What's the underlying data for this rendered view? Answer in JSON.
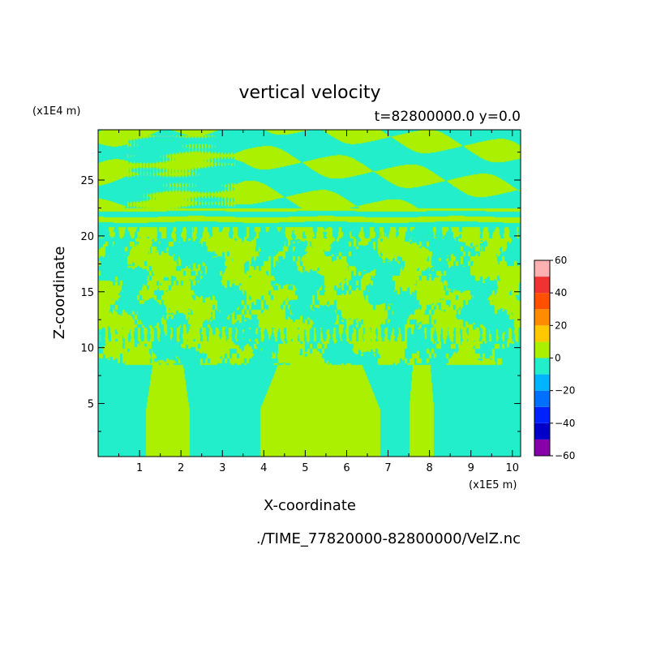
{
  "chart_data": {
    "type": "heatmap",
    "title": "vertical velocity",
    "subtitle": "t=82800000.0 y=0.0",
    "xlabel": "X-coordinate",
    "ylabel": "Z-coordinate",
    "x_unit": "(x1E5 m)",
    "y_unit": "(x1E4 m)",
    "footer": "./TIME_77820000-82800000/VelZ.nc",
    "xlim": [
      0,
      10.2
    ],
    "ylim": [
      0.25,
      29.5
    ],
    "xticks": [
      1,
      2,
      3,
      4,
      5,
      6,
      7,
      8,
      9,
      10
    ],
    "yticks": [
      5,
      10,
      15,
      20,
      25
    ],
    "colorbar": {
      "levels": [
        -60,
        -50,
        -40,
        -30,
        -20,
        -10,
        0,
        10,
        20,
        30,
        40,
        50,
        60
      ],
      "tick_labels": [
        "60",
        "40",
        "20",
        "0",
        "−20",
        "−40",
        "−60"
      ],
      "tick_values": [
        60,
        40,
        20,
        0,
        -20,
        -40,
        -60
      ],
      "colors": [
        "#8800aa",
        "#0000c8",
        "#0022ff",
        "#0070ff",
        "#00b4ff",
        "#22eecc",
        "#aaf000",
        "#ffc800",
        "#ff8c00",
        "#ff5000",
        "#f03232",
        "#ffb0b0"
      ]
    },
    "field_classes": {
      "negative_0_to_-10": "#22eecc",
      "positive_0_to_10": "#aaf000"
    },
    "low_level_updraft_bands_x": [
      [
        1.15,
        2.2
      ],
      [
        3.9,
        6.8
      ],
      [
        7.5,
        8.1
      ]
    ]
  }
}
